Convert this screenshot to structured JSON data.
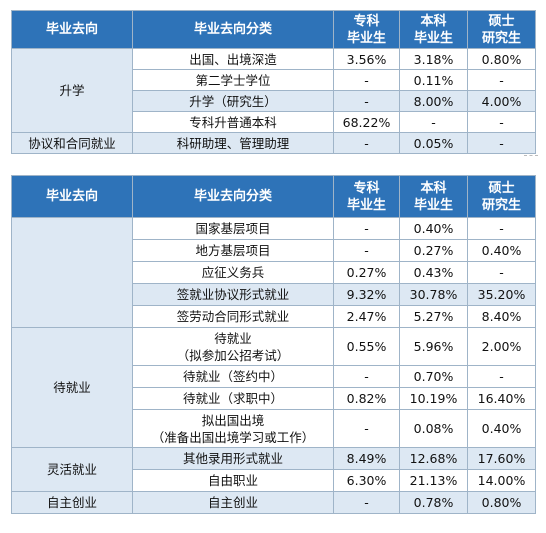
{
  "headers": {
    "col1": "毕业去向",
    "col2": "毕业去向分类",
    "col3a": "专科",
    "col3b": "毕业生",
    "col4a": "本科",
    "col4b": "毕业生",
    "col5a": "硕士",
    "col5b": "研究生"
  },
  "table1": {
    "groups": [
      {
        "label": "升学",
        "rows": [
          {
            "cat": "出国、出境深造",
            "v": [
              "3.56%",
              "3.18%",
              "0.80%"
            ]
          },
          {
            "cat": "第二学士学位",
            "v": [
              "-",
              "0.11%",
              "-"
            ]
          },
          {
            "cat": "升学（研究生）",
            "v": [
              "-",
              "8.00%",
              "4.00%"
            ]
          },
          {
            "cat": "专科升普通本科",
            "v": [
              "68.22%",
              "-",
              "-"
            ]
          }
        ]
      },
      {
        "label": "协议和合同就业",
        "rows": [
          {
            "cat": "科研助理、管理助理",
            "v": [
              "-",
              "0.05%",
              "-"
            ]
          }
        ]
      }
    ]
  },
  "table2": {
    "groups": [
      {
        "label": "",
        "rows": [
          {
            "cat": "国家基层项目",
            "v": [
              "-",
              "0.40%",
              "-"
            ]
          },
          {
            "cat": "地方基层项目",
            "v": [
              "-",
              "0.27%",
              "0.40%"
            ]
          },
          {
            "cat": "应征义务兵",
            "v": [
              "0.27%",
              "0.43%",
              "-"
            ]
          },
          {
            "cat": "签就业协议形式就业",
            "v": [
              "9.32%",
              "30.78%",
              "35.20%"
            ]
          },
          {
            "cat": "签劳动合同形式就业",
            "v": [
              "2.47%",
              "5.27%",
              "8.40%"
            ]
          }
        ]
      },
      {
        "label": "待就业",
        "rows": [
          {
            "cat1": "待就业",
            "cat2": "（拟参加公招考试）",
            "v": [
              "0.55%",
              "5.96%",
              "2.00%"
            ]
          },
          {
            "cat": "待就业（签约中）",
            "v": [
              "-",
              "0.70%",
              "-"
            ]
          },
          {
            "cat": "待就业（求职中）",
            "v": [
              "0.82%",
              "10.19%",
              "16.40%"
            ]
          },
          {
            "cat1": "拟出国出境",
            "cat2": "（准备出国出境学习或工作）",
            "v": [
              "-",
              "0.08%",
              "0.40%"
            ]
          }
        ]
      },
      {
        "label": "灵活就业",
        "rows": [
          {
            "cat": "其他录用形式就业",
            "v": [
              "8.49%",
              "12.68%",
              "17.60%"
            ]
          },
          {
            "cat": "自由职业",
            "v": [
              "6.30%",
              "21.13%",
              "14.00%"
            ]
          }
        ]
      },
      {
        "label": "自主创业",
        "rows": [
          {
            "cat": "自主创业",
            "v": [
              "-",
              "0.78%",
              "0.80%"
            ]
          }
        ]
      }
    ]
  }
}
